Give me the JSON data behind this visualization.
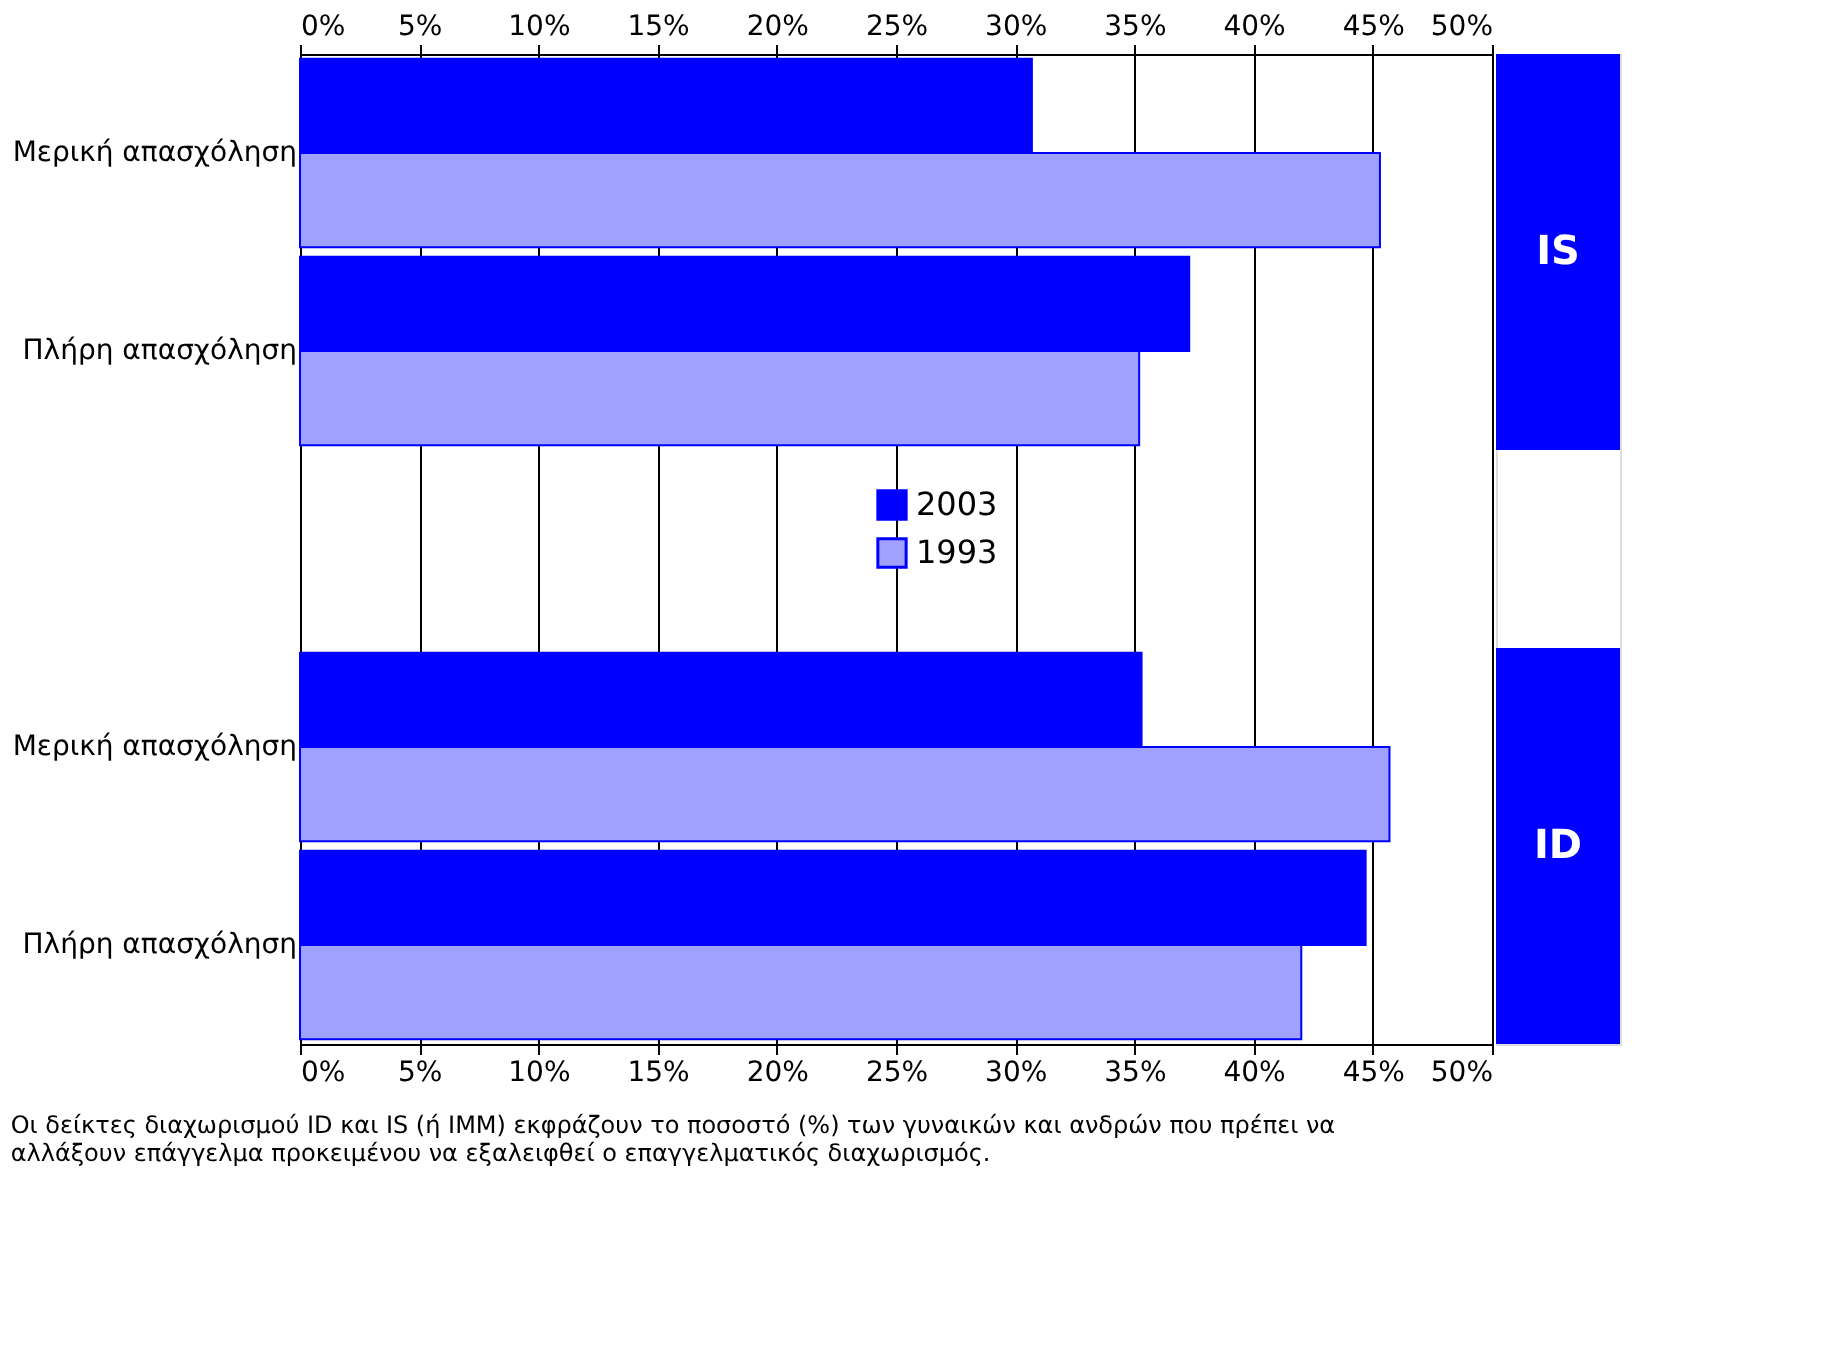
{
  "chart_data": {
    "type": "bar",
    "orientation": "horizontal",
    "categories": [
      "Μερική απασχόληση",
      "Πλήρη απασχόληση",
      null,
      "Μερική απασχόληση",
      "Πλήρη απασχόληση"
    ],
    "series": [
      {
        "name": "2003",
        "color": "#0000ff",
        "values": [
          30.7,
          37.3,
          null,
          35.3,
          44.7
        ]
      },
      {
        "name": "1993",
        "color": "#a0a0ff",
        "values": [
          45.3,
          35.2,
          null,
          45.7,
          42.0
        ]
      }
    ],
    "xlim": [
      0,
      50
    ],
    "xticks": [
      {
        "value": 0,
        "label": "0%"
      },
      {
        "value": 5,
        "label": "5%"
      },
      {
        "value": 10,
        "label": "10%"
      },
      {
        "value": 15,
        "label": "15%"
      },
      {
        "value": 20,
        "label": "20%"
      },
      {
        "value": 25,
        "label": "25%"
      },
      {
        "value": 30,
        "label": "30%"
      },
      {
        "value": 35,
        "label": "35%"
      },
      {
        "value": 40,
        "label": "40%"
      },
      {
        "value": 45,
        "label": "45%"
      },
      {
        "value": 50,
        "label": "50%"
      }
    ],
    "x2lim": [
      0,
      50
    ],
    "x2ticks": [
      {
        "value": 0,
        "label": "0%"
      },
      {
        "value": 5,
        "label": "5%"
      },
      {
        "value": 10,
        "label": "10%"
      },
      {
        "value": 15,
        "label": "15%"
      },
      {
        "value": 20,
        "label": "20%"
      },
      {
        "value": 25,
        "label": "25%"
      },
      {
        "value": 30,
        "label": "30%"
      },
      {
        "value": 35,
        "label": "35%"
      },
      {
        "value": 40,
        "label": "40%"
      },
      {
        "value": 45,
        "label": "45%"
      },
      {
        "value": 50,
        "label": "50%"
      }
    ],
    "grid": "x",
    "legend": "center",
    "annotations": [
      "IS",
      "ID",
      "Οι δείκτες διαχωρισμού ID και IS (ή IMM) εκφράζουν το ποσοστό (%) των γυναικών και ανδρών που πρέπει να αλλάξουν επάγγελμα προκειμένου να εξαλειφθεί ο επαγγελματικός διαχωρισμός."
    ]
  }
}
